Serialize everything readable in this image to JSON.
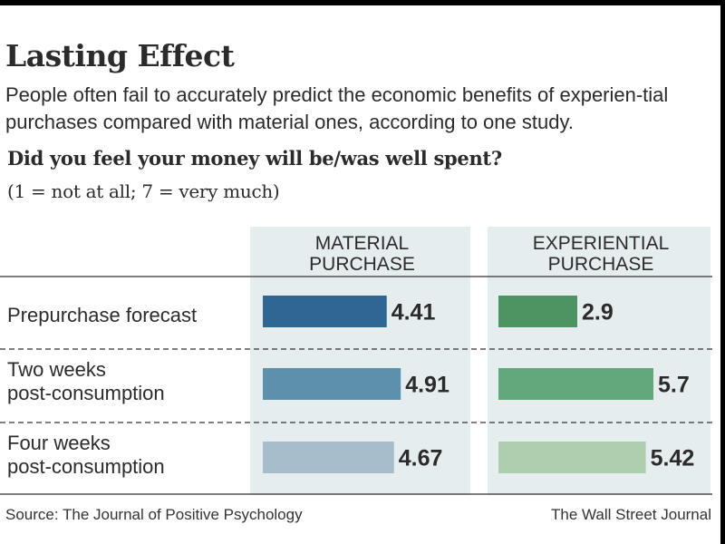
{
  "title": "Lasting Effect",
  "subtitle": "People often fail to accurately predict the economic benefits of experien-tial purchases compared with material ones, according to one study.",
  "question": "Did you feel your money will be/was well spent?",
  "scale_note": "(1 = not at all; 7 = very much)",
  "source": "Source: The Journal of Positive Psychology",
  "credit": "The Wall Street Journal",
  "colors": {
    "panel_bg": "#e6edef",
    "material": [
      "#2e6791",
      "#5d90ad",
      "#a7bdcc"
    ],
    "experiential": [
      "#4e9462",
      "#61a87c",
      "#adcfaf"
    ]
  },
  "chart_data": {
    "type": "bar",
    "orientation": "horizontal",
    "categories": [
      "Prepurchase forecast",
      "Two weeks post-consumption",
      "Four weeks post-consumption"
    ],
    "series": [
      {
        "name": "MATERIAL PURCHASE",
        "values": [
          4.41,
          4.91,
          4.67
        ]
      },
      {
        "name": "EXPERIENTIAL PURCHASE",
        "values": [
          2.9,
          5.7,
          5.42
        ]
      }
    ],
    "scale": [
      1,
      7
    ],
    "value_labels": [
      "4.41",
      "4.91",
      "4.67",
      "2.9",
      "5.7",
      "5.42"
    ]
  }
}
